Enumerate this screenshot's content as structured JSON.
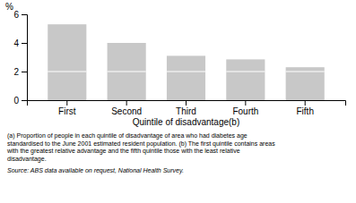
{
  "chart_data": {
    "type": "bar",
    "stacked": true,
    "grid": false,
    "xlabel": "Quintile of disadvantage(b)",
    "ylabel": "%",
    "categories": [
      "First",
      "Second",
      "Third",
      "Fourth",
      "Fifth"
    ],
    "series": [
      {
        "color": "#c8c8c8",
        "values": [
          2.0,
          2.0,
          2.0,
          2.0,
          2.0
        ]
      },
      {
        "color": "#c8c8c8",
        "values": [
          3.3,
          2.0,
          1.1,
          0.85,
          0.3
        ]
      }
    ],
    "ylim": [
      0,
      6
    ],
    "yticks": [
      0,
      2,
      4,
      6
    ],
    "annotations": [
      "(a) Proportion of people in each quintile of disadvantage of area who had diabetes age\nstandardised to the June 2001 estimated resident population. (b) The first quintile contains areas\nwith the greatest relative advantage and the fifth quintile those with the least relative\ndisadvantage.",
      "Source: ABS data available on request, National Health Survey."
    ]
  }
}
